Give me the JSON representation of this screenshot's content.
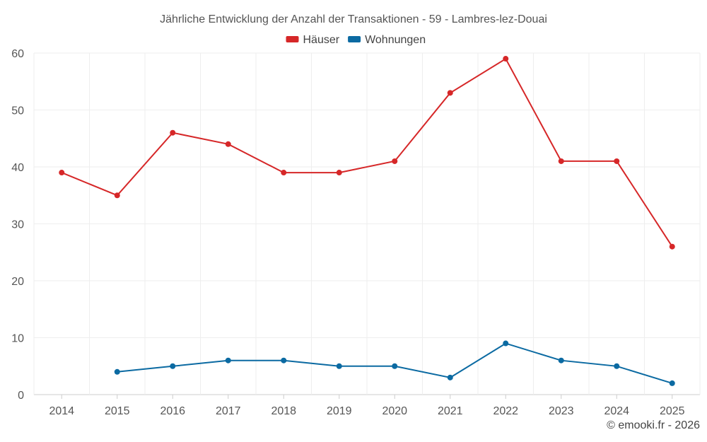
{
  "chart_data": {
    "type": "line",
    "title": "Jährliche Entwicklung der Anzahl der Transaktionen - 59 - Lambres-lez-Douai",
    "categories": [
      "2014",
      "2015",
      "2016",
      "2017",
      "2018",
      "2019",
      "2020",
      "2021",
      "2022",
      "2023",
      "2024",
      "2025"
    ],
    "series": [
      {
        "name": "Häuser",
        "color": "#d62728",
        "values": [
          39,
          35,
          46,
          44,
          39,
          39,
          41,
          53,
          59,
          41,
          41,
          26
        ]
      },
      {
        "name": "Wohnungen",
        "color": "#0b6aa2",
        "values": [
          null,
          4,
          5,
          6,
          6,
          5,
          5,
          3,
          9,
          6,
          5,
          2
        ]
      }
    ],
    "ylim": [
      0,
      60
    ],
    "yticks": [
      0,
      10,
      20,
      30,
      40,
      50,
      60
    ],
    "xlabel": "",
    "ylabel": "",
    "grid": true,
    "legend": "top-center"
  },
  "credit": "© emooki.fr - 2026"
}
